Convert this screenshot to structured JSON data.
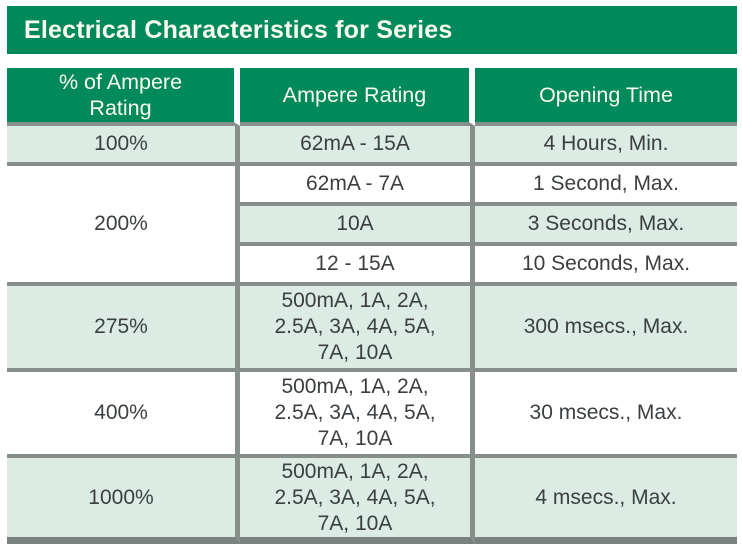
{
  "title_bar": {
    "text": "Electrical Characteristics for Series"
  },
  "colors": {
    "header_green": "#008a5c",
    "row_tint_green": "#dcebe3",
    "border_gray": "#878f8b",
    "bottom_bar_gray": "#79827e",
    "body_text": "#3b3f41",
    "header_text": "#fbfbef"
  },
  "table": {
    "columns": [
      {
        "label_lines": [
          "% of Ampere",
          "Rating"
        ]
      },
      {
        "label": "Ampere Rating"
      },
      {
        "label": "Opening Time"
      }
    ],
    "rows": [
      {
        "percent": "100%",
        "entries": [
          {
            "ampere": "62mA - 15A",
            "time": "4 Hours, Min."
          }
        ]
      },
      {
        "percent": "200%",
        "entries": [
          {
            "ampere": "62mA - 7A",
            "time": "1 Second, Max."
          },
          {
            "ampere": "10A",
            "time": "3 Seconds, Max."
          },
          {
            "ampere": "12 - 15A",
            "time": "10 Seconds, Max."
          }
        ]
      },
      {
        "percent": "275%",
        "entries": [
          {
            "ampere_lines": [
              "500mA, 1A, 2A,",
              "2.5A, 3A, 4A, 5A,",
              "7A, 10A"
            ],
            "time": "300 msecs., Max."
          }
        ]
      },
      {
        "percent": "400%",
        "entries": [
          {
            "ampere_lines": [
              "500mA, 1A, 2A,",
              "2.5A, 3A, 4A, 5A,",
              "7A, 10A"
            ],
            "time": "30 msecs., Max."
          }
        ]
      },
      {
        "percent": "1000%",
        "entries": [
          {
            "ampere_lines": [
              "500mA, 1A, 2A,",
              "2.5A, 3A, 4A, 5A,",
              "7A, 10A"
            ],
            "time": "4 msecs., Max."
          }
        ]
      }
    ]
  }
}
